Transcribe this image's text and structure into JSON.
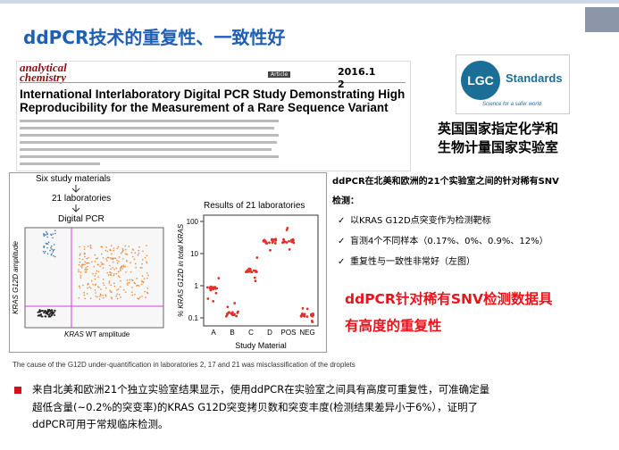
{
  "title": "ddPCR技术的重复性、一致性好",
  "paper": {
    "journal_line1": "analytical",
    "journal_line2": "chemistry",
    "tag": "Article",
    "headline": [
      "International Interlaboratory Digital PCR Study Demonstrating High",
      "Reproducibility for the Measurement of a Rare Sequence Variant"
    ],
    "date": [
      "2016.1",
      "2"
    ]
  },
  "logo": {
    "mark": "LGC",
    "name": "Standards",
    "tagline": "Science for a safer world"
  },
  "lab": [
    "英国国家指定化学和",
    "生物计量国家实验室"
  ],
  "figure": {
    "flow": [
      "Six study materials",
      "21 laboratories",
      "Digital PCR"
    ],
    "scatter_ylabel": "KRAS G12D amplitude",
    "scatter_xlabel_italic": "KRAS",
    "scatter_xlabel": "WT amplitude",
    "results_title": "Results of 21 laboratories",
    "yticks": [
      "100",
      "10",
      "1",
      "0.1"
    ],
    "ylabel": "% KRAS G12D in total KRAS",
    "categories": [
      "A",
      "B",
      "C",
      "D",
      "POS",
      "NEG"
    ],
    "xlabel": "Study Material"
  },
  "intro": [
    "ddPCR在北美和欧洲的21个实验室之间的针对稀有SNV",
    "检测："
  ],
  "bullets": [
    "以KRAS G12D点突变作为检测靶标",
    "盲测4个不同样本（0.17%、0%、0.9%、12%）",
    "重复性与一致性非常好（左图）"
  ],
  "highlight": [
    "ddPCR针对稀有SNV检测数据具",
    "有高度的重复性"
  ],
  "caption": "The cause of the G12D under-quantification in laboratories 2, 17 and 21 was misclassification of the droplets",
  "summary": [
    "来自北美和欧洲21个独立实验室结果显示，使用ddPCR在实验室之间具有高度可重复性，可准确定量",
    "超低含量(~0.2%的突变率)的KRAS G12D突变拷贝数和突变丰度(检测结果差异小于6%），证明了",
    "ddPCR可用于常规临床检测。"
  ]
}
